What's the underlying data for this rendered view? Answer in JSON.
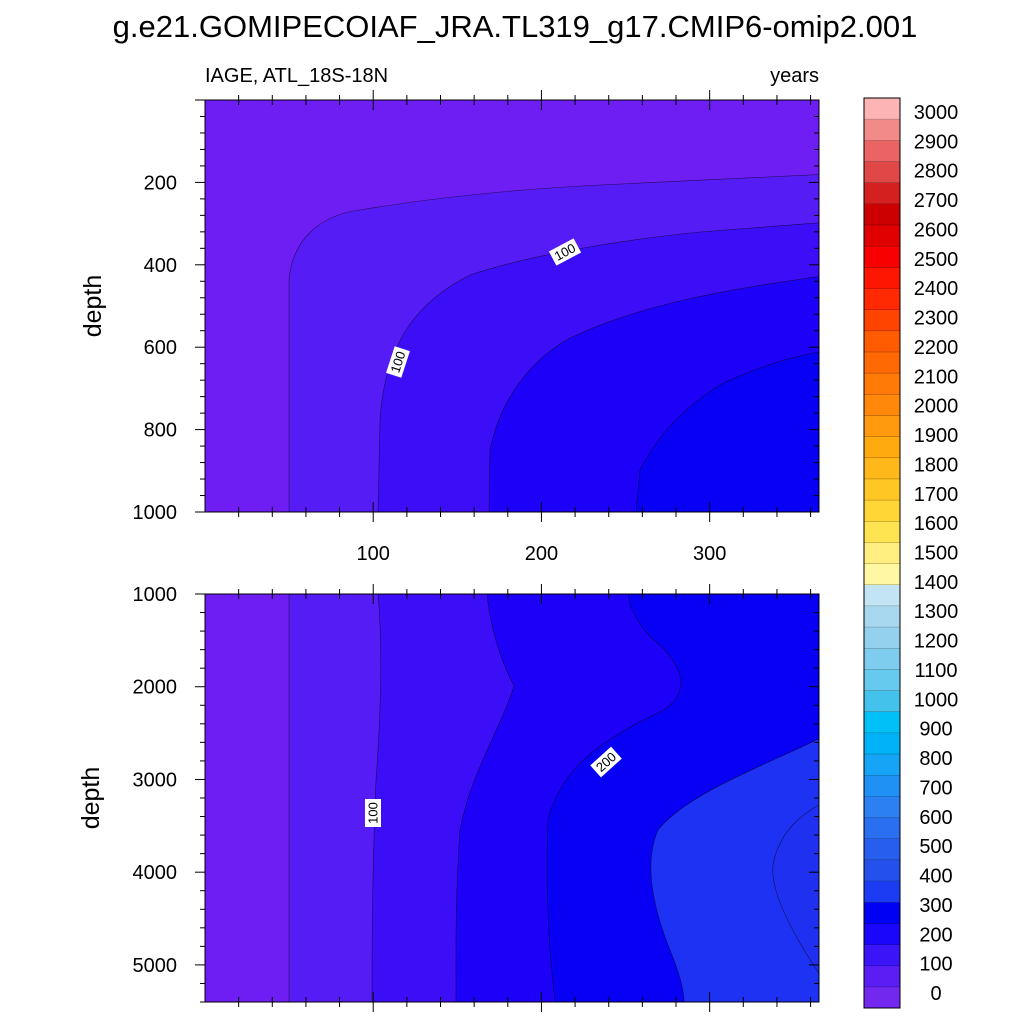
{
  "title": "g.e21.GOMIPECOIAF_JRA.TL319_g17.CMIP6-omip2.001",
  "chart_data": [
    {
      "type": "heatmap",
      "subtitle_left": "IAGE, ATL_18S-18N",
      "subtitle_right": "years",
      "ylabel": "depth",
      "xlim": [
        0,
        365
      ],
      "ylim": [
        0,
        1000
      ],
      "y_reversed": true,
      "xticks": [
        100,
        200,
        300
      ],
      "yticks": [
        200,
        400,
        600,
        800,
        1000
      ],
      "contour_labels": [
        {
          "text": "100",
          "x": 113,
          "y": 640
        },
        {
          "text": "100",
          "x": 215,
          "y": 355
        }
      ]
    },
    {
      "type": "heatmap",
      "subtitle_left": "",
      "subtitle_right": "",
      "ylabel": "depth",
      "xlim": [
        0,
        365
      ],
      "ylim": [
        1000,
        5400
      ],
      "y_reversed": true,
      "xticks": [
        100,
        200,
        300
      ],
      "yticks": [
        1000,
        2000,
        3000,
        4000,
        5000
      ],
      "contour_labels": [
        {
          "text": "100",
          "x": 100,
          "y": 3330
        },
        {
          "text": "200",
          "x": 240,
          "y": 2830
        }
      ]
    }
  ],
  "colorbar": {
    "levels": [
      0,
      100,
      200,
      300,
      400,
      500,
      600,
      700,
      800,
      900,
      1000,
      1100,
      1200,
      1300,
      1400,
      1500,
      1600,
      1700,
      1800,
      1900,
      2000,
      2100,
      2200,
      2300,
      2400,
      2500,
      2600,
      2700,
      2800,
      2900,
      3000
    ],
    "colors": [
      "#7328f0",
      "#5a1ef5",
      "#3c14f8",
      "#1a06fb",
      "#0000f2",
      "#1c3cf3",
      "#2450ec",
      "#275eee",
      "#2a6ff0",
      "#2d80f2",
      "#1f90f4",
      "#16a4f6",
      "#00b2f7",
      "#00c0f8",
      "#43c3ec",
      "#66c9ee",
      "#7fcdee",
      "#94d1ee",
      "#a8d8f0",
      "#c2e4f4",
      "#fff7a3",
      "#ffee80",
      "#ffe451",
      "#ffd635",
      "#ffc723",
      "#ffb81a",
      "#ffaa0e",
      "#ff9a0e",
      "#ff880a",
      "#ff7a06",
      "#ff6904",
      "#ff5c02",
      "#ff4402",
      "#ff2a02",
      "#ff1601",
      "#f80001",
      "#e00001",
      "#cc0001",
      "#d52020",
      "#e04848",
      "#ea6464",
      "#f38a8a",
      "#fdb4b4"
    ],
    "labels": [
      "0",
      "100",
      "200",
      "300",
      "400",
      "500",
      "600",
      "700",
      "800",
      "900",
      "1000",
      "1100",
      "1200",
      "1300",
      "1400",
      "1500",
      "1600",
      "1700",
      "1800",
      "1900",
      "2000",
      "2100",
      "2200",
      "2300",
      "2400",
      "2500",
      "2600",
      "2700",
      "2800",
      "2900",
      "3000"
    ]
  },
  "colors": {
    "band0": "#6e1ef2",
    "band1": "#561cf5",
    "band2": "#3c0ef8",
    "band3": "#1c00f8",
    "band4": "#0800f5",
    "band5": "#1e32f4"
  }
}
